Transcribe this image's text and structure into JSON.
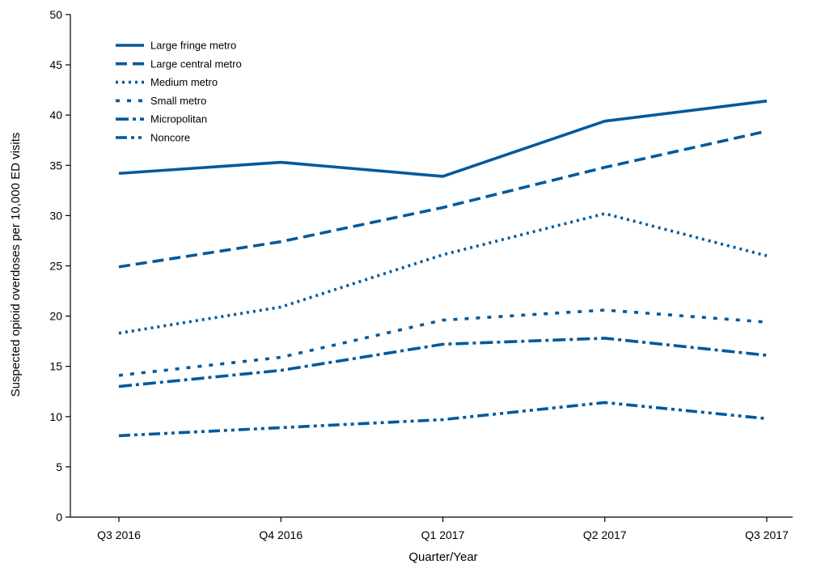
{
  "chart_data": {
    "type": "line",
    "title": "",
    "xlabel": "Quarter/Year",
    "ylabel": "Suspected opioid overdoses per 10,000 ED visits",
    "ylim": [
      0,
      50
    ],
    "yticks": [
      0,
      5,
      10,
      15,
      20,
      25,
      30,
      35,
      40,
      45,
      50
    ],
    "categories": [
      "Q3 2016",
      "Q4 2016",
      "Q1 2017",
      "Q2 2017",
      "Q3 2017"
    ],
    "grid": false,
    "legend_position": "top-left",
    "line_color": "#00599C",
    "series": [
      {
        "name": "Large fringe metro",
        "style": "solid",
        "values": [
          34.2,
          35.3,
          33.9,
          39.4,
          41.4
        ]
      },
      {
        "name": "Large central metro",
        "style": "dashed",
        "values": [
          24.9,
          27.4,
          30.8,
          34.8,
          38.4
        ]
      },
      {
        "name": "Medium metro",
        "style": "dotted",
        "values": [
          18.3,
          20.9,
          26.1,
          30.2,
          26.0
        ]
      },
      {
        "name": "Small metro",
        "style": "short-dash",
        "values": [
          14.1,
          15.9,
          19.6,
          20.6,
          19.4
        ]
      },
      {
        "name": "Micropolitan",
        "style": "dash-dot",
        "values": [
          13.0,
          14.6,
          17.2,
          17.8,
          16.1
        ]
      },
      {
        "name": "Noncore",
        "style": "dash-dot-dot",
        "values": [
          8.1,
          8.9,
          9.7,
          11.4,
          9.8
        ]
      }
    ]
  }
}
